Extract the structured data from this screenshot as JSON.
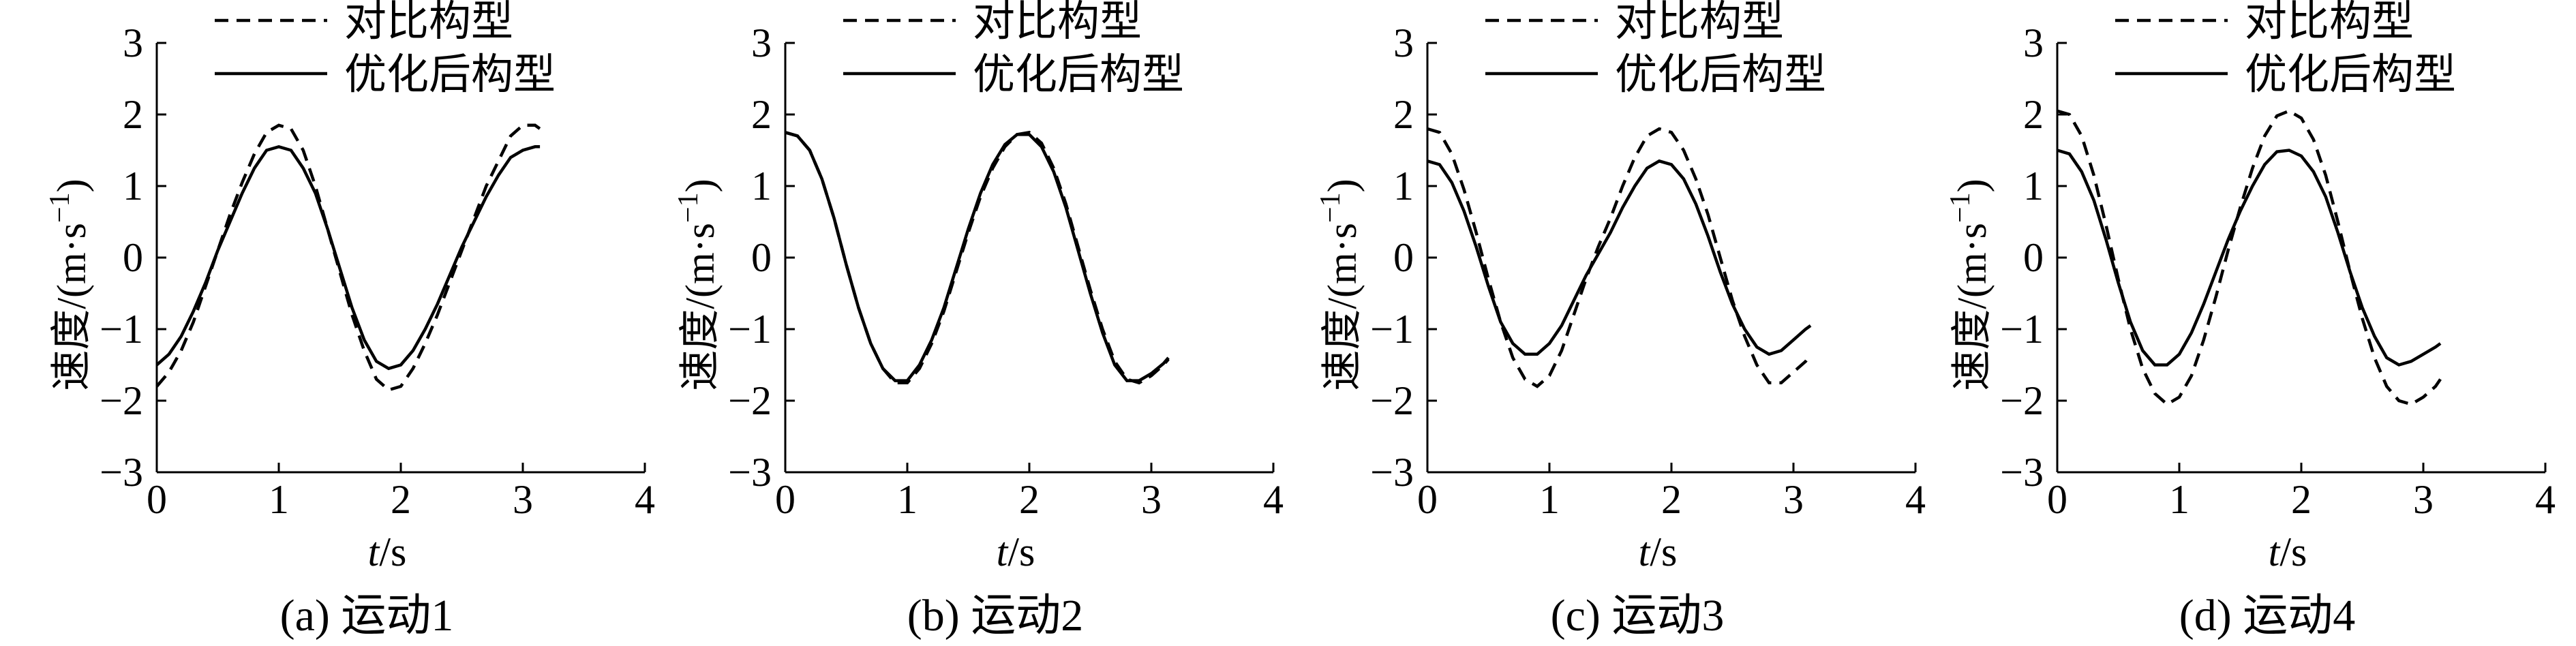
{
  "chart_data": [
    {
      "type": "line",
      "caption": "(a) 运动1",
      "xlabel_italic": "t",
      "xlabel_unit": "/s",
      "ylabel_main": "速度/(m·s",
      "ylabel_sup": "−1",
      "ylabel_close": ")",
      "xlim": [
        0,
        4
      ],
      "ylim": [
        -3,
        3
      ],
      "xticks": [
        0,
        1,
        2,
        3,
        4
      ],
      "yticks": [
        -3,
        -2,
        -1,
        0,
        1,
        2,
        3
      ],
      "xtick_labels": [
        "0",
        "1",
        "2",
        "3",
        "4"
      ],
      "ytick_labels": [
        "−3",
        "−2",
        "−1",
        "0",
        "1",
        "2",
        "3"
      ],
      "legend": [
        "对比构型",
        "优化后构型"
      ],
      "series": [
        {
          "name": "对比构型",
          "style": "dashed",
          "x": [
            0,
            0.1,
            0.2,
            0.3,
            0.4,
            0.5,
            0.6,
            0.7,
            0.8,
            0.9,
            1.0,
            1.1,
            1.2,
            1.3,
            1.4,
            1.5,
            1.6,
            1.7,
            1.8,
            1.9,
            2.0,
            2.1,
            2.2,
            2.3,
            2.4,
            2.5,
            2.6,
            2.7,
            2.8,
            2.9,
            3.0,
            3.1,
            3.14
          ],
          "y": [
            -1.8,
            -1.6,
            -1.3,
            -0.9,
            -0.4,
            0.1,
            0.6,
            1.05,
            1.45,
            1.75,
            1.85,
            1.8,
            1.5,
            1.0,
            0.4,
            -0.2,
            -0.8,
            -1.3,
            -1.7,
            -1.85,
            -1.8,
            -1.55,
            -1.2,
            -0.8,
            -0.35,
            0.1,
            0.55,
            1.0,
            1.35,
            1.7,
            1.85,
            1.85,
            1.8
          ]
        },
        {
          "name": "优化后构型",
          "style": "solid",
          "x": [
            0,
            0.1,
            0.2,
            0.3,
            0.4,
            0.5,
            0.6,
            0.7,
            0.8,
            0.9,
            1.0,
            1.1,
            1.2,
            1.3,
            1.4,
            1.5,
            1.6,
            1.7,
            1.8,
            1.9,
            2.0,
            2.1,
            2.2,
            2.3,
            2.4,
            2.5,
            2.6,
            2.7,
            2.8,
            2.9,
            3.0,
            3.1,
            3.14
          ],
          "y": [
            -1.5,
            -1.35,
            -1.1,
            -0.75,
            -0.35,
            0.1,
            0.5,
            0.9,
            1.25,
            1.5,
            1.55,
            1.5,
            1.25,
            0.9,
            0.4,
            -0.15,
            -0.7,
            -1.15,
            -1.45,
            -1.55,
            -1.5,
            -1.3,
            -1.0,
            -0.65,
            -0.25,
            0.15,
            0.5,
            0.85,
            1.15,
            1.4,
            1.5,
            1.55,
            1.55
          ]
        }
      ]
    },
    {
      "type": "line",
      "caption": "(b) 运动2",
      "xlabel_italic": "t",
      "xlabel_unit": "/s",
      "ylabel_main": "速度/(m·s",
      "ylabel_sup": "−1",
      "ylabel_close": ")",
      "xlim": [
        0,
        4
      ],
      "ylim": [
        -3,
        3
      ],
      "xticks": [
        0,
        1,
        2,
        3,
        4
      ],
      "yticks": [
        -3,
        -2,
        -1,
        0,
        1,
        2,
        3
      ],
      "xtick_labels": [
        "0",
        "1",
        "2",
        "3",
        "4"
      ],
      "ytick_labels": [
        "−3",
        "−2",
        "−1",
        "0",
        "1",
        "2",
        "3"
      ],
      "legend": [
        "对比构型",
        "优化后构型"
      ],
      "series": [
        {
          "name": "对比构型",
          "style": "dashed",
          "x": [
            0,
            0.1,
            0.2,
            0.3,
            0.4,
            0.5,
            0.6,
            0.7,
            0.8,
            0.9,
            1.0,
            1.1,
            1.2,
            1.3,
            1.4,
            1.5,
            1.6,
            1.7,
            1.8,
            1.9,
            2.0,
            2.1,
            2.2,
            2.3,
            2.4,
            2.5,
            2.6,
            2.7,
            2.8,
            2.9,
            3.0,
            3.1,
            3.14
          ],
          "y": [
            1.75,
            1.7,
            1.5,
            1.1,
            0.55,
            -0.1,
            -0.7,
            -1.2,
            -1.55,
            -1.75,
            -1.75,
            -1.55,
            -1.2,
            -0.75,
            -0.2,
            0.35,
            0.85,
            1.25,
            1.55,
            1.72,
            1.75,
            1.6,
            1.25,
            0.75,
            0.15,
            -0.45,
            -1.0,
            -1.45,
            -1.7,
            -1.75,
            -1.65,
            -1.5,
            -1.42
          ]
        },
        {
          "name": "优化后构型",
          "style": "solid",
          "x": [
            0,
            0.1,
            0.2,
            0.3,
            0.4,
            0.5,
            0.6,
            0.7,
            0.8,
            0.9,
            1.0,
            1.1,
            1.2,
            1.3,
            1.4,
            1.5,
            1.6,
            1.7,
            1.8,
            1.9,
            2.0,
            2.1,
            2.2,
            2.3,
            2.4,
            2.5,
            2.6,
            2.7,
            2.8,
            2.9,
            3.0,
            3.1,
            3.14
          ],
          "y": [
            1.75,
            1.7,
            1.5,
            1.1,
            0.55,
            -0.1,
            -0.7,
            -1.2,
            -1.55,
            -1.72,
            -1.72,
            -1.5,
            -1.15,
            -0.7,
            -0.15,
            0.4,
            0.9,
            1.3,
            1.58,
            1.72,
            1.72,
            1.55,
            1.2,
            0.7,
            0.1,
            -0.5,
            -1.05,
            -1.5,
            -1.72,
            -1.72,
            -1.62,
            -1.48,
            -1.4
          ]
        }
      ]
    },
    {
      "type": "line",
      "caption": "(c) 运动3",
      "xlabel_italic": "t",
      "xlabel_unit": "/s",
      "ylabel_main": "速度/(m·s",
      "ylabel_sup": "−1",
      "ylabel_close": ")",
      "xlim": [
        0,
        4
      ],
      "ylim": [
        -3,
        3
      ],
      "xticks": [
        0,
        1,
        2,
        3,
        4
      ],
      "yticks": [
        -3,
        -2,
        -1,
        0,
        1,
        2,
        3
      ],
      "xtick_labels": [
        "0",
        "1",
        "2",
        "3",
        "4"
      ],
      "ytick_labels": [
        "−3",
        "−2",
        "−1",
        "0",
        "1",
        "2",
        "3"
      ],
      "legend": [
        "对比构型",
        "优化后构型"
      ],
      "series": [
        {
          "name": "对比构型",
          "style": "dashed",
          "x": [
            0,
            0.1,
            0.2,
            0.3,
            0.4,
            0.5,
            0.6,
            0.7,
            0.8,
            0.9,
            1.0,
            1.1,
            1.2,
            1.3,
            1.4,
            1.5,
            1.6,
            1.7,
            1.8,
            1.9,
            2.0,
            2.1,
            2.2,
            2.3,
            2.4,
            2.5,
            2.6,
            2.7,
            2.8,
            2.9,
            3.0,
            3.1,
            3.14
          ],
          "y": [
            1.8,
            1.75,
            1.45,
            0.95,
            0.35,
            -0.3,
            -0.9,
            -1.4,
            -1.7,
            -1.8,
            -1.65,
            -1.3,
            -0.8,
            -0.3,
            0.15,
            0.55,
            1.0,
            1.4,
            1.7,
            1.8,
            1.75,
            1.5,
            1.1,
            0.6,
            0.0,
            -0.6,
            -1.1,
            -1.5,
            -1.75,
            -1.75,
            -1.6,
            -1.45,
            -1.35
          ]
        },
        {
          "name": "优化后构型",
          "style": "solid",
          "x": [
            0,
            0.1,
            0.2,
            0.3,
            0.4,
            0.5,
            0.6,
            0.7,
            0.8,
            0.9,
            1.0,
            1.1,
            1.2,
            1.3,
            1.4,
            1.5,
            1.6,
            1.7,
            1.8,
            1.9,
            2.0,
            2.1,
            2.2,
            2.3,
            2.4,
            2.5,
            2.6,
            2.7,
            2.8,
            2.9,
            3.0,
            3.1,
            3.14
          ],
          "y": [
            1.35,
            1.3,
            1.05,
            0.65,
            0.15,
            -0.4,
            -0.9,
            -1.2,
            -1.35,
            -1.35,
            -1.2,
            -0.95,
            -0.6,
            -0.25,
            0.05,
            0.35,
            0.7,
            1.0,
            1.25,
            1.35,
            1.3,
            1.1,
            0.75,
            0.3,
            -0.2,
            -0.65,
            -1.0,
            -1.25,
            -1.35,
            -1.3,
            -1.15,
            -1.0,
            -0.95
          ]
        }
      ]
    },
    {
      "type": "line",
      "caption": "(d) 运动4",
      "xlabel_italic": "t",
      "xlabel_unit": "/s",
      "ylabel_main": "速度/(m·s",
      "ylabel_sup": "−1",
      "ylabel_close": ")",
      "xlim": [
        0,
        4
      ],
      "ylim": [
        -3,
        3
      ],
      "xticks": [
        0,
        1,
        2,
        3,
        4
      ],
      "yticks": [
        -3,
        -2,
        -1,
        0,
        1,
        2,
        3
      ],
      "xtick_labels": [
        "0",
        "1",
        "2",
        "3",
        "4"
      ],
      "ytick_labels": [
        "−3",
        "−2",
        "−1",
        "0",
        "1",
        "2",
        "3"
      ],
      "legend": [
        "对比构型",
        "优化后构型"
      ],
      "series": [
        {
          "name": "对比构型",
          "style": "dashed",
          "x": [
            0,
            0.1,
            0.2,
            0.3,
            0.4,
            0.5,
            0.6,
            0.7,
            0.8,
            0.9,
            1.0,
            1.1,
            1.2,
            1.3,
            1.4,
            1.5,
            1.6,
            1.7,
            1.8,
            1.9,
            2.0,
            2.1,
            2.2,
            2.3,
            2.4,
            2.5,
            2.6,
            2.7,
            2.8,
            2.9,
            3.0,
            3.1,
            3.14
          ],
          "y": [
            2.05,
            2.0,
            1.7,
            1.15,
            0.45,
            -0.3,
            -1.0,
            -1.55,
            -1.9,
            -2.05,
            -1.95,
            -1.65,
            -1.15,
            -0.55,
            0.1,
            0.7,
            1.25,
            1.7,
            1.98,
            2.05,
            1.95,
            1.65,
            1.15,
            0.5,
            -0.2,
            -0.85,
            -1.4,
            -1.8,
            -2.0,
            -2.05,
            -1.95,
            -1.8,
            -1.7
          ]
        },
        {
          "name": "优化后构型",
          "style": "solid",
          "x": [
            0,
            0.1,
            0.2,
            0.3,
            0.4,
            0.5,
            0.6,
            0.7,
            0.8,
            0.9,
            1.0,
            1.1,
            1.2,
            1.3,
            1.4,
            1.5,
            1.6,
            1.7,
            1.8,
            1.9,
            2.0,
            2.1,
            2.2,
            2.3,
            2.4,
            2.5,
            2.6,
            2.7,
            2.8,
            2.9,
            3.0,
            3.1,
            3.14
          ],
          "y": [
            1.5,
            1.45,
            1.2,
            0.8,
            0.25,
            -0.35,
            -0.9,
            -1.3,
            -1.5,
            -1.5,
            -1.35,
            -1.05,
            -0.65,
            -0.2,
            0.25,
            0.65,
            1.0,
            1.3,
            1.48,
            1.5,
            1.42,
            1.2,
            0.85,
            0.35,
            -0.2,
            -0.7,
            -1.1,
            -1.4,
            -1.5,
            -1.45,
            -1.35,
            -1.25,
            -1.2
          ]
        }
      ]
    }
  ]
}
